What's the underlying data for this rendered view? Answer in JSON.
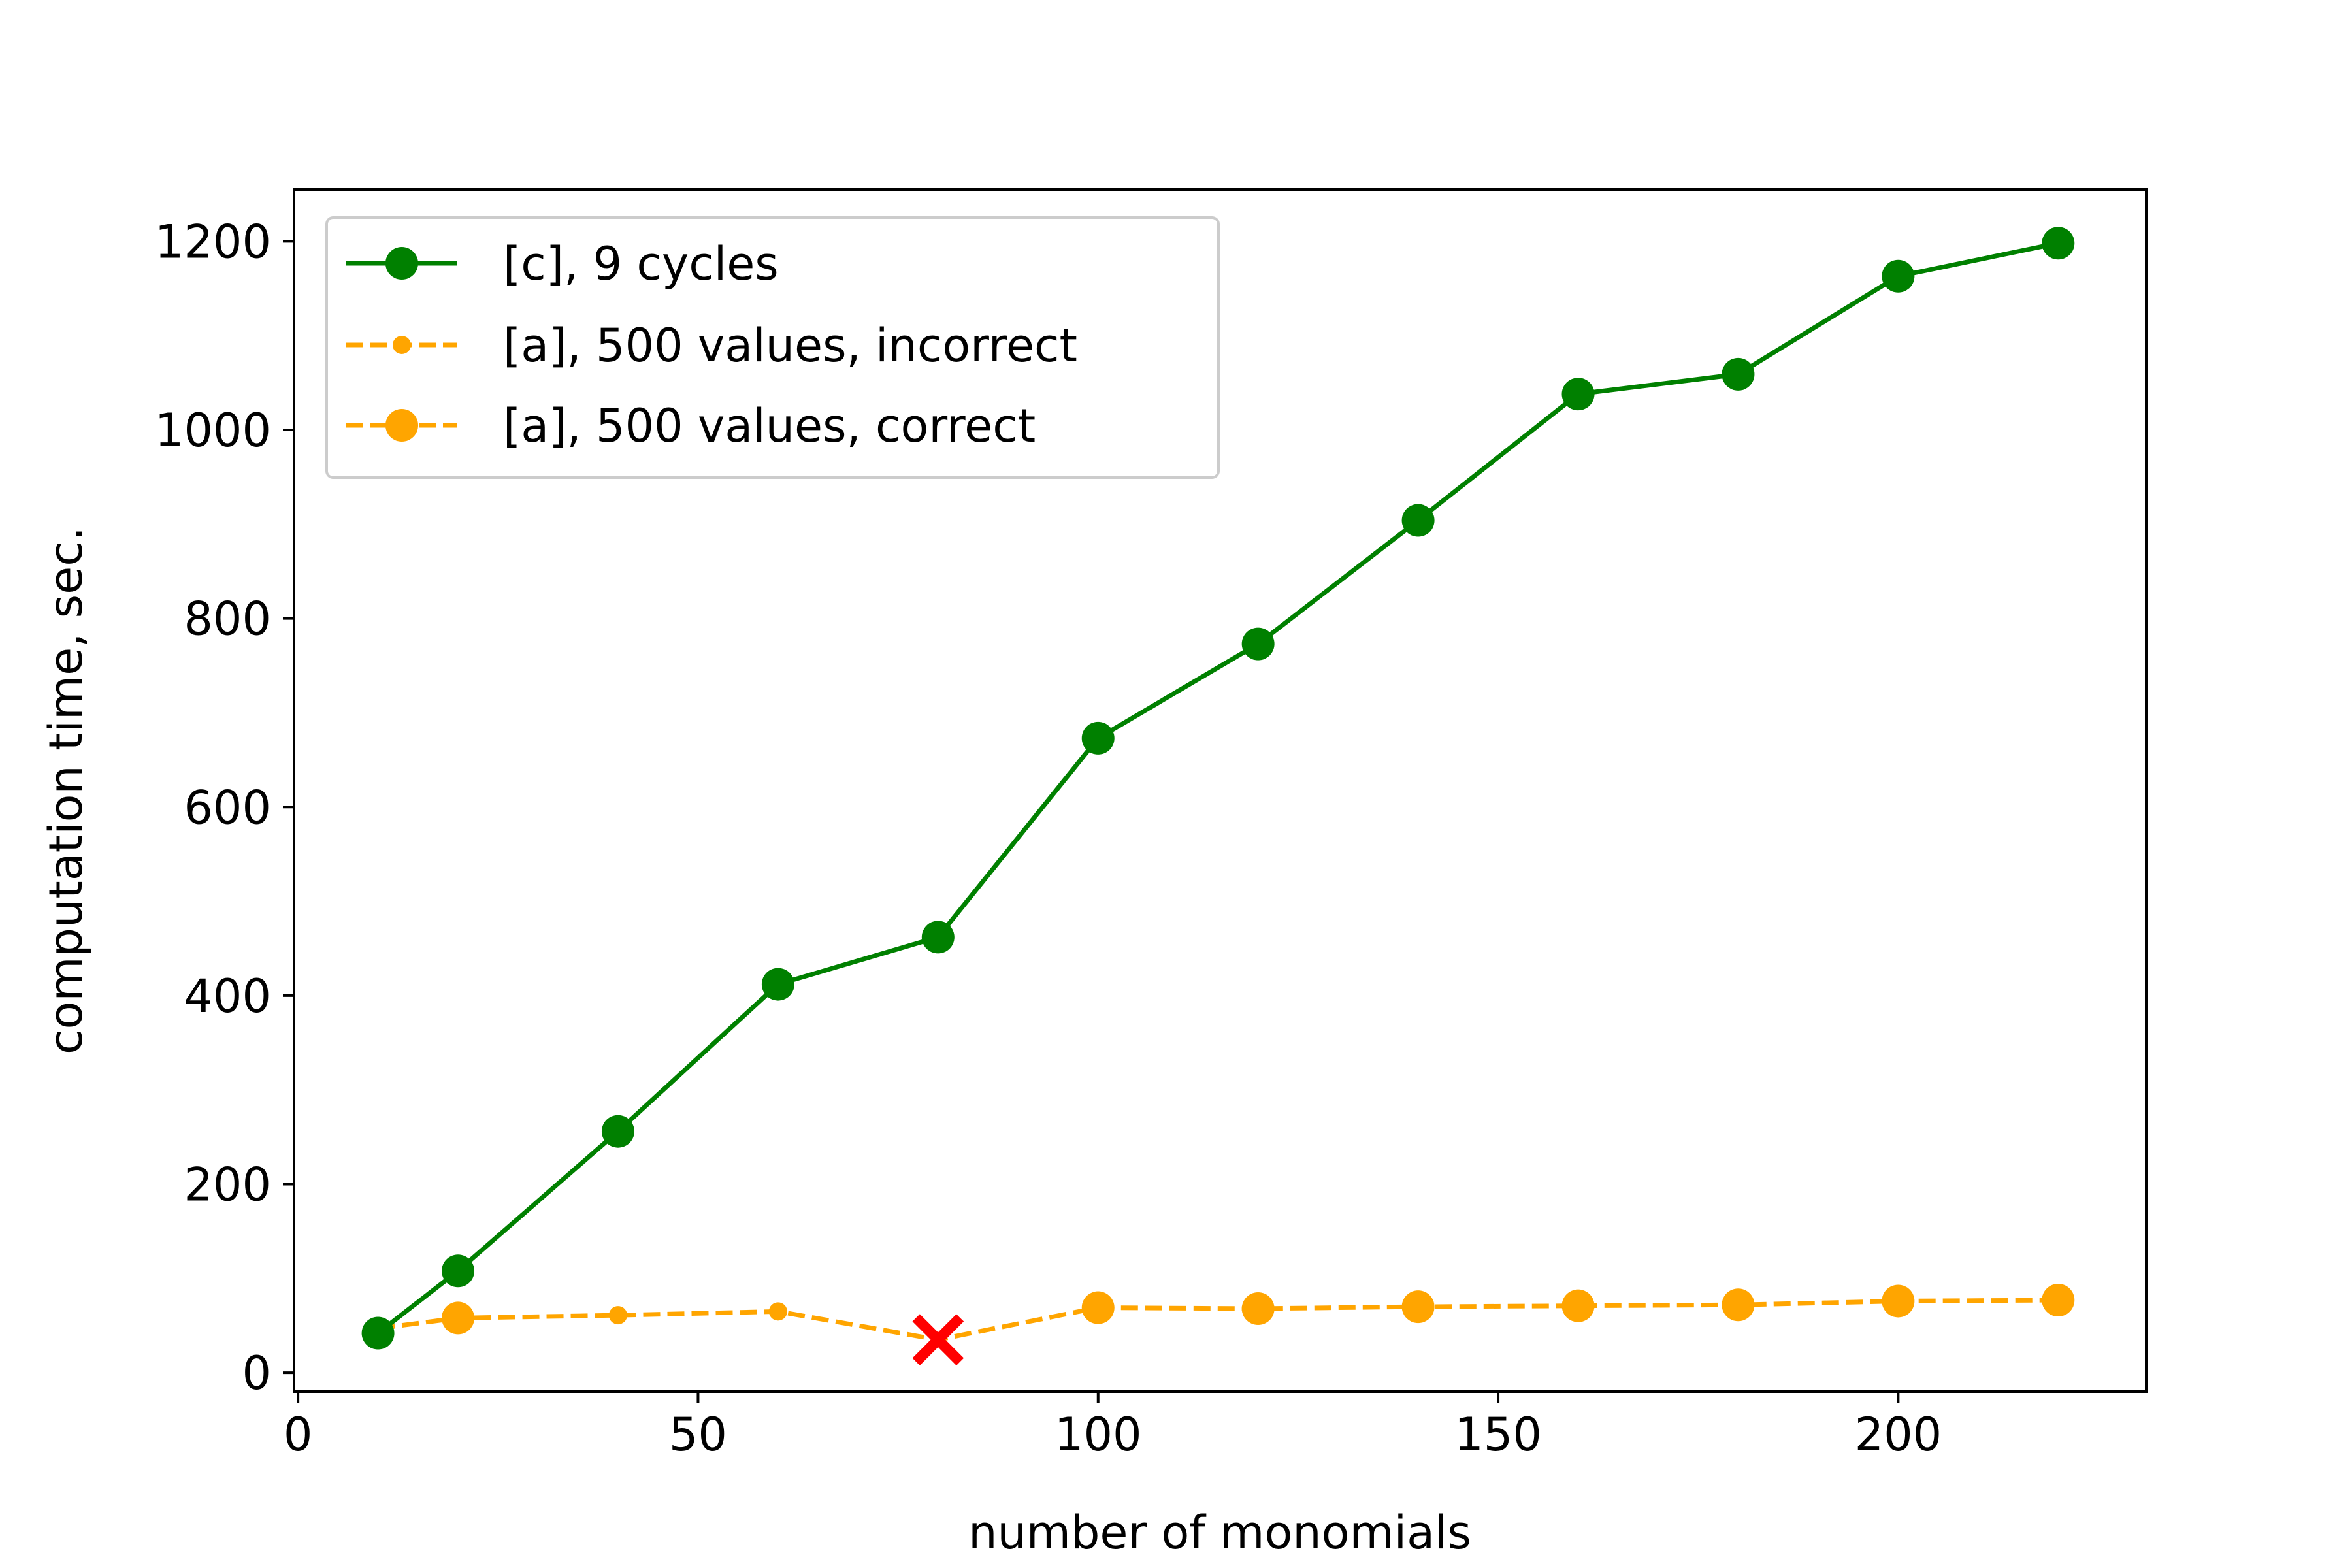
{
  "chart_data": {
    "type": "line",
    "title": "",
    "xlabel": "number of monomials",
    "ylabel": "computation time, sec.",
    "xlim": [
      -0.5,
      231
    ],
    "ylim": [
      -20,
      1255
    ],
    "xticks": [
      0,
      50,
      100,
      150,
      200
    ],
    "yticks": [
      0,
      200,
      400,
      600,
      800,
      1000,
      1200
    ],
    "legend_position": "upper-left",
    "colors": {
      "green": "#008000",
      "orange": "#ffa500",
      "red": "#ff0000"
    },
    "series": [
      {
        "name": "[c], 9 cycles",
        "style": "solid",
        "marker": "large-circle",
        "color": "#008000",
        "x": [
          10,
          20,
          40,
          60,
          80,
          100,
          120,
          140,
          160,
          180,
          200,
          220
        ],
        "y": [
          42,
          108,
          256,
          412,
          462,
          673,
          773,
          904,
          1038,
          1059,
          1163,
          1198
        ]
      },
      {
        "name": "[a], 500 values, incorrect",
        "style": "dashed",
        "marker": "small-circle",
        "color": "#ffa500",
        "x": [
          10,
          40,
          60
        ],
        "y": [
          47,
          61,
          65
        ]
      },
      {
        "name": "[a], 500 values, correct",
        "style": "dashed",
        "marker": "large-circle",
        "color": "#ffa500",
        "x": [
          20,
          100,
          120,
          140,
          160,
          180,
          200,
          220
        ],
        "y": [
          58,
          69,
          68,
          70,
          71,
          72,
          76,
          77
        ]
      }
    ],
    "connector_line": {
      "color": "#ffa500",
      "style": "dashed",
      "x": [
        10,
        20,
        40,
        60,
        80,
        100,
        120,
        140,
        160,
        180,
        200,
        220
      ],
      "y": [
        47,
        58,
        61,
        65,
        35,
        69,
        68,
        70,
        71,
        72,
        76,
        77
      ]
    },
    "annotations": [
      {
        "marker": "x",
        "color": "#ff0000",
        "x": 80,
        "y": 35
      }
    ]
  }
}
